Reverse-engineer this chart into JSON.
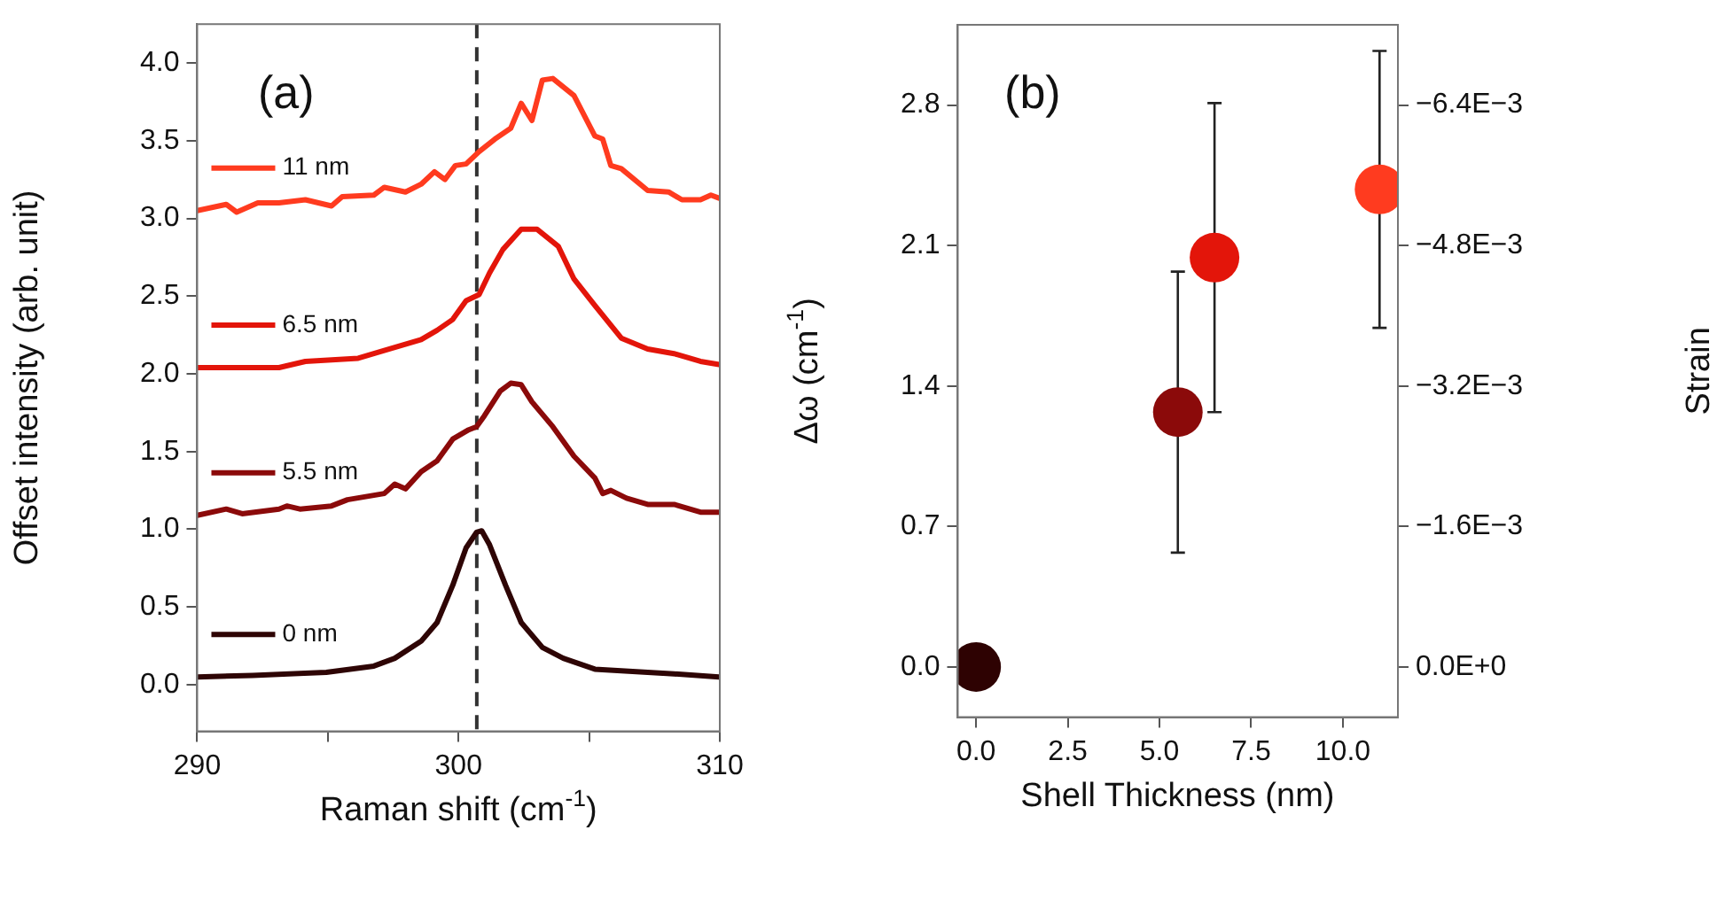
{
  "chart_data": [
    {
      "type": "line",
      "xlabel": "Raman shift (cm$^{-1}$)",
      "ylabel": "Offset intensity (arb. unit)",
      "annotations": [
        "(a)"
      ],
      "xlim": [
        290,
        310
      ],
      "xticks": [
        290,
        {
          "value": 295,
          "label": null
        },
        300,
        {
          "value": 305,
          "label": null
        },
        310
      ],
      "ylim": [
        -0.3,
        4.25
      ],
      "yticks": [
        {
          "value": 0,
          "label": "0.0"
        },
        0.5,
        {
          "value": 1,
          "label": "1.0"
        },
        1.5,
        {
          "value": 2,
          "label": "2.0"
        },
        2.5,
        {
          "value": 3,
          "label": "3.0"
        },
        3.5,
        {
          "value": 4,
          "label": "4.0"
        }
      ],
      "grid": false,
      "legend": "left",
      "marker": "none",
      "line_style": "solid",
      "ref_lines": [
        {
          "axis": "x",
          "value": 300.7,
          "color": "#333333",
          "line_style": "dashed"
        }
      ],
      "series": [
        {
          "name": "0 nm",
          "color": "#2e0505",
          "x": [
            290.0,
            292.12,
            294.94,
            296.76,
            297.56,
            298.57,
            299.18,
            299.78,
            300.29,
            300.69,
            300.89,
            301.19,
            301.8,
            302.4,
            303.21,
            304.01,
            305.22,
            306.23,
            308.25,
            309.97
          ],
          "values": [
            0.05,
            0.06,
            0.08,
            0.12,
            0.17,
            0.28,
            0.4,
            0.64,
            0.88,
            0.98,
            0.99,
            0.9,
            0.64,
            0.4,
            0.24,
            0.17,
            0.1,
            0.09,
            0.07,
            0.05
          ]
        },
        {
          "name": "5.5 nm",
          "color": "#8b0a0a",
          "x": [
            290.0,
            291.11,
            291.72,
            293.13,
            293.43,
            293.93,
            295.14,
            295.75,
            297.16,
            297.56,
            297.97,
            298.57,
            299.18,
            299.78,
            300.39,
            300.69,
            300.99,
            301.6,
            302.0,
            302.4,
            302.81,
            303.61,
            304.42,
            305.22,
            305.52,
            305.83,
            306.43,
            307.24,
            308.25,
            309.26,
            309.97
          ],
          "values": [
            1.09,
            1.13,
            1.1,
            1.13,
            1.15,
            1.13,
            1.15,
            1.19,
            1.23,
            1.29,
            1.26,
            1.37,
            1.44,
            1.58,
            1.64,
            1.66,
            1.73,
            1.89,
            1.94,
            1.93,
            1.82,
            1.66,
            1.47,
            1.33,
            1.23,
            1.25,
            1.2,
            1.16,
            1.16,
            1.11,
            1.11
          ]
        },
        {
          "name": "6.5 nm",
          "color": "#e3150a",
          "x": [
            290.0,
            293.13,
            294.14,
            296.16,
            297.16,
            298.57,
            299.18,
            299.78,
            300.29,
            300.79,
            301.19,
            301.7,
            302.4,
            303.01,
            303.82,
            304.42,
            305.22,
            306.23,
            307.24,
            308.25,
            309.26,
            309.97
          ],
          "values": [
            2.04,
            2.04,
            2.08,
            2.1,
            2.15,
            2.22,
            2.28,
            2.35,
            2.47,
            2.51,
            2.65,
            2.8,
            2.93,
            2.93,
            2.82,
            2.61,
            2.44,
            2.23,
            2.16,
            2.13,
            2.08,
            2.06
          ]
        },
        {
          "name": "11 nm",
          "color": "#ff3b1f",
          "x": [
            290.0,
            291.11,
            291.51,
            292.32,
            293.13,
            294.14,
            295.14,
            295.55,
            296.76,
            297.16,
            297.97,
            298.57,
            299.08,
            299.48,
            299.88,
            300.29,
            300.79,
            301.39,
            302.0,
            302.4,
            302.81,
            303.21,
            303.61,
            304.42,
            305.22,
            305.52,
            305.83,
            306.23,
            307.24,
            308.04,
            308.55,
            309.26,
            309.66,
            309.97
          ],
          "values": [
            3.05,
            3.09,
            3.04,
            3.1,
            3.1,
            3.12,
            3.08,
            3.14,
            3.15,
            3.2,
            3.17,
            3.22,
            3.3,
            3.25,
            3.34,
            3.35,
            3.43,
            3.51,
            3.58,
            3.74,
            3.63,
            3.89,
            3.9,
            3.79,
            3.53,
            3.51,
            3.34,
            3.32,
            3.18,
            3.17,
            3.12,
            3.12,
            3.15,
            3.13
          ]
        }
      ]
    },
    {
      "type": "scatter",
      "xlabel": "Shell Thickness (nm)",
      "ylabel": "Δω (cm$^{-1}$)",
      "y2label": "Strain",
      "annotations": [
        "(b)"
      ],
      "xlim": [
        -0.5,
        11.5
      ],
      "xticks": [
        {
          "value": 0,
          "label": "0.0"
        },
        2.5,
        {
          "value": 5,
          "label": "5.0"
        },
        7.5,
        {
          "value": 10,
          "label": "10.0"
        }
      ],
      "ylim": [
        -0.25,
        3.2
      ],
      "yticks": [
        {
          "value": 0,
          "label": "0.0"
        },
        0.7,
        1.4,
        2.1,
        2.8
      ],
      "y2lim": [
        0.000571,
        -0.007314
      ],
      "y2ticks": [
        {
          "value": 0,
          "label": "0.0E+0"
        },
        {
          "value": -0.0016,
          "label": "−1.6E−3"
        },
        {
          "value": -0.0032,
          "label": "−3.2E−3"
        },
        {
          "value": -0.0048,
          "label": "−4.8E−3"
        },
        {
          "value": -0.0064,
          "label": "−6.4E−3"
        }
      ],
      "grid": false,
      "marker": "circle",
      "series": [
        {
          "x": [
            0,
            5.5,
            6.5,
            11
          ],
          "values": [
            0,
            1.27,
            2.04,
            2.38
          ],
          "colors": [
            "#2e0202",
            "#8b0a0a",
            "#e3150a",
            "#ff3b1f"
          ],
          "errors": [
            null,
            0.7,
            0.77,
            0.69
          ]
        }
      ]
    }
  ]
}
